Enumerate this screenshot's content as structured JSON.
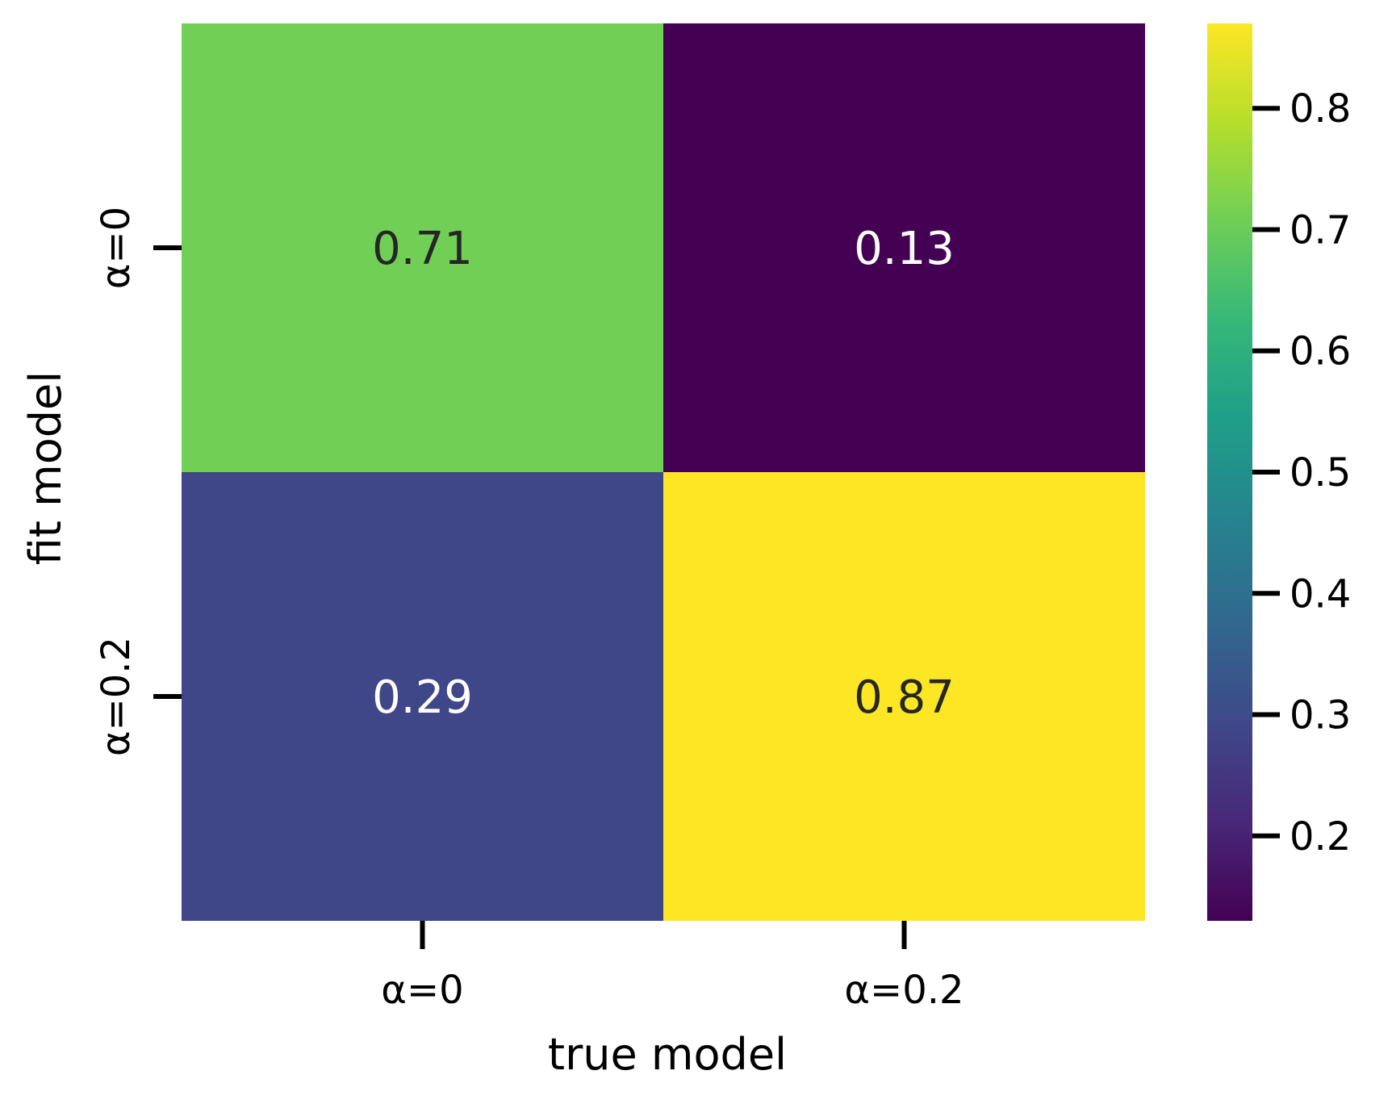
{
  "chart_data": {
    "type": "heatmap",
    "xlabel": "true model",
    "ylabel": "fit model",
    "x_categories": [
      "α=0",
      "α=0.2"
    ],
    "y_categories": [
      "α=0",
      "α=0.2"
    ],
    "values": [
      [
        0.71,
        0.13
      ],
      [
        0.29,
        0.87
      ]
    ],
    "cell_labels": [
      [
        "0.71",
        "0.13"
      ],
      [
        "0.29",
        "0.87"
      ]
    ],
    "colormap": "viridis",
    "colorbar": {
      "range": [
        0.13,
        0.87
      ],
      "ticks": [
        0.2,
        0.3,
        0.4,
        0.5,
        0.6,
        0.7,
        0.8
      ],
      "tick_labels": [
        "0.2",
        "0.3",
        "0.4",
        "0.5",
        "0.6",
        "0.7",
        "0.8"
      ]
    },
    "text_colors": {
      "light": "#ffffff",
      "dark": "#262626"
    }
  }
}
